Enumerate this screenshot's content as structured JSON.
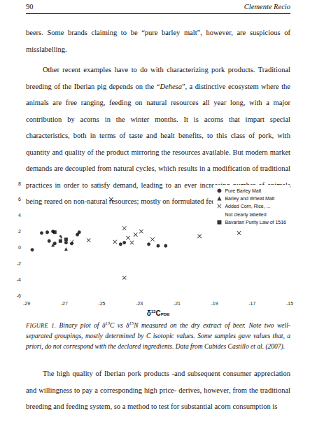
{
  "header": {
    "page": "90",
    "author": "Clemente Recio"
  },
  "paragraphs_before": [
    [
      {
        "text": "beers. Some brands claiming to be “pure barley malt”, however, are suspicious of misslabelling."
      }
    ],
    [
      {
        "text": "Other recent examples have to do with characterizing pork products. Traditional breeding of the Iberian pig depends on the “"
      },
      {
        "text": "Dehesa",
        "style": "italic"
      },
      {
        "text": "”, a distinctive ecosystem where the animals are free ranging, feeding on natural resources all year long, with a major contribution by acorns in the winter months. It is acorns that impart special characteristics, both in terms of taste and healt benefits, to this class of pork, with quantity and quality of the product mirroring the resources available. But modern market demands are decoupled from natural cycles, which results in a modification of traditional practices in order to satisfy demand, leading to an ever increasing number of animals being reared on non-natural resources; mostly on formulated feed."
      }
    ]
  ],
  "chart_data": {
    "type": "scatter",
    "xlabel": [
      {
        "text": "δ"
      },
      {
        "text": "13",
        "position": "sup"
      },
      {
        "text": "C"
      },
      {
        "text": "PDB",
        "position": "sub"
      }
    ],
    "xlim": [
      -29,
      -15
    ],
    "xticks": [
      -29,
      -27,
      -25,
      -23,
      -21,
      -19,
      -17,
      -15
    ],
    "ylim": [
      -6,
      8
    ],
    "yticks": [
      -6,
      -4,
      -2,
      0,
      2,
      4,
      6,
      8
    ],
    "grid": false,
    "legend": "top right",
    "series": [
      {
        "name": "Pure Barley Malt",
        "color": "#000000",
        "marker": "circle",
        "x": [
          -28.7,
          -28.2,
          -27.9,
          -27.6,
          -27.8,
          -27.5,
          -27.2,
          -26.9,
          -26.6,
          -26.3,
          -26.2,
          -24.0,
          -23.8,
          -22.5,
          -22.0,
          -21.6
        ],
        "values": [
          -0.3,
          1.8,
          1.9,
          2.0,
          0.8,
          0.5,
          1.3,
          0.6,
          0.5,
          1.6,
          1.9,
          0.4,
          0.6,
          0.4,
          0.2,
          0.2
        ]
      },
      {
        "name": "Barley and Wheat Malt",
        "color": "#000000",
        "marker": "triangle",
        "x": [
          -27.6,
          -26.9
        ],
        "values": [
          0.3,
          -0.2
        ]
      },
      {
        "name": "Added Corn, Rice, ...",
        "color": "#000000",
        "marker": "cross",
        "x": [
          -24.5,
          -23.8,
          -23.2,
          -22.9,
          -23.6,
          -24.3,
          -23.4,
          -22.3,
          -19.8,
          -17.7,
          -23.8,
          -25.7,
          -26.6
        ],
        "values": [
          6.0,
          2.4,
          1.6,
          2.0,
          1.2,
          0.7,
          0.6,
          1.0,
          1.4,
          1.8,
          -3.8,
          0.9,
          0.7
        ]
      },
      {
        "name": "Not clearly labelled",
        "color": "#000000",
        "marker": "ring",
        "x": [
          -27.3,
          -27.0,
          -26.7
        ],
        "values": [
          1.1,
          1.4,
          0.9
        ]
      },
      {
        "name": "Bavarian Purity Law of 1516",
        "color": "#000000",
        "marker": "square",
        "x": [
          -27.5,
          -27.2,
          -26.9
        ],
        "values": [
          1.9,
          0.8,
          1.0
        ]
      }
    ]
  },
  "caption": [
    {
      "text": "FIGURE 1.",
      "style": "label"
    },
    {
      "text": " Binary plot of δ"
    },
    {
      "text": "13",
      "style": "sup"
    },
    {
      "text": "C vs δ"
    },
    {
      "text": "15",
      "style": "sup"
    },
    {
      "text": "N measured on the dry extract of beer. Note two well-separated groupings, mostly determined by C isotopic values. Some samples gave values that, a priori, do not correspond with the declared ingredients. Data from Cubides Castillo et al. (2007)."
    }
  ],
  "paragraphs_after": [
    [
      {
        "text": "The high quality of Iberian pork products -and subsequent consumer appreciation and willingness to pay a corresponding high price- derives, however, from the traditional breeding and feeding system, so a method to test for substantial acorn consumption is"
      }
    ]
  ]
}
